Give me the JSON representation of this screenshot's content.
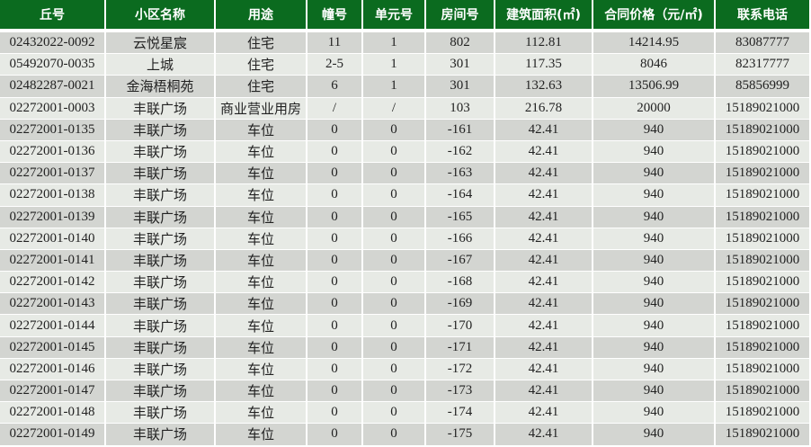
{
  "table": {
    "headers": [
      "丘号",
      "小区名称",
      "用途",
      "幢号",
      "单元号",
      "房间号",
      "建筑面积(㎡)",
      "合同价格（元/㎡)",
      "联系电话"
    ],
    "rows": [
      [
        "02432022-0092",
        "云悦星宸",
        "住宅",
        "11",
        "1",
        "802",
        "112.81",
        "14214.95",
        "83087777"
      ],
      [
        "05492070-0035",
        "上城",
        "住宅",
        "2-5",
        "1",
        "301",
        "117.35",
        "8046",
        "82317777"
      ],
      [
        "02482287-0021",
        "金海梧桐苑",
        "住宅",
        "6",
        "1",
        "301",
        "132.63",
        "13506.99",
        "85856999"
      ],
      [
        "02272001-0003",
        "丰联广场",
        "商业营业用房",
        "/",
        "/",
        "103",
        "216.78",
        "20000",
        "15189021000"
      ],
      [
        "02272001-0135",
        "丰联广场",
        "车位",
        "0",
        "0",
        "-161",
        "42.41",
        "940",
        "15189021000"
      ],
      [
        "02272001-0136",
        "丰联广场",
        "车位",
        "0",
        "0",
        "-162",
        "42.41",
        "940",
        "15189021000"
      ],
      [
        "02272001-0137",
        "丰联广场",
        "车位",
        "0",
        "0",
        "-163",
        "42.41",
        "940",
        "15189021000"
      ],
      [
        "02272001-0138",
        "丰联广场",
        "车位",
        "0",
        "0",
        "-164",
        "42.41",
        "940",
        "15189021000"
      ],
      [
        "02272001-0139",
        "丰联广场",
        "车位",
        "0",
        "0",
        "-165",
        "42.41",
        "940",
        "15189021000"
      ],
      [
        "02272001-0140",
        "丰联广场",
        "车位",
        "0",
        "0",
        "-166",
        "42.41",
        "940",
        "15189021000"
      ],
      [
        "02272001-0141",
        "丰联广场",
        "车位",
        "0",
        "0",
        "-167",
        "42.41",
        "940",
        "15189021000"
      ],
      [
        "02272001-0142",
        "丰联广场",
        "车位",
        "0",
        "0",
        "-168",
        "42.41",
        "940",
        "15189021000"
      ],
      [
        "02272001-0143",
        "丰联广场",
        "车位",
        "0",
        "0",
        "-169",
        "42.41",
        "940",
        "15189021000"
      ],
      [
        "02272001-0144",
        "丰联广场",
        "车位",
        "0",
        "0",
        "-170",
        "42.41",
        "940",
        "15189021000"
      ],
      [
        "02272001-0145",
        "丰联广场",
        "车位",
        "0",
        "0",
        "-171",
        "42.41",
        "940",
        "15189021000"
      ],
      [
        "02272001-0146",
        "丰联广场",
        "车位",
        "0",
        "0",
        "-172",
        "42.41",
        "940",
        "15189021000"
      ],
      [
        "02272001-0147",
        "丰联广场",
        "车位",
        "0",
        "0",
        "-173",
        "42.41",
        "940",
        "15189021000"
      ],
      [
        "02272001-0148",
        "丰联广场",
        "车位",
        "0",
        "0",
        "-174",
        "42.41",
        "940",
        "15189021000"
      ],
      [
        "02272001-0149",
        "丰联广场",
        "车位",
        "0",
        "0",
        "-175",
        "42.41",
        "940",
        "15189021000"
      ]
    ]
  },
  "colors": {
    "header_bg": "#0b6b1f",
    "row_dark": "#d3d5d1",
    "row_light": "#e7eae5"
  }
}
